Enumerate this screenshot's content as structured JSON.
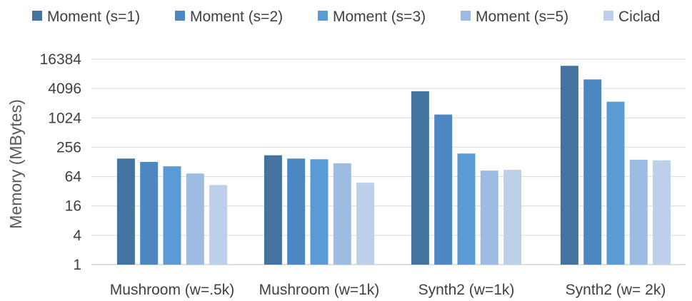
{
  "chart_data": {
    "type": "bar",
    "ylabel": "Memory (MBytes)",
    "yscale": "log2",
    "ylim": [
      1,
      16384
    ],
    "yticks": [
      "1",
      "4",
      "16",
      "64",
      "256",
      "1024",
      "4096",
      "16384"
    ],
    "grid": true,
    "legend_position": "top",
    "categories": [
      "Mushroom (w=.5k)",
      "Mushroom (w=1k)",
      "Synth2 (w=1k)",
      "Synth2 (w= 2k)"
    ],
    "series": [
      {
        "name": "Moment (s=1)",
        "color": "#44739f",
        "values": [
          150,
          175,
          3600,
          12000
        ]
      },
      {
        "name": "Moment (s=2)",
        "color": "#4d87c2",
        "values": [
          128,
          150,
          1200,
          6300
        ]
      },
      {
        "name": "Moment (s=3)",
        "color": "#5b9bd5",
        "values": [
          104,
          145,
          190,
          2200
        ]
      },
      {
        "name": "Moment (s=5)",
        "color": "#9cbce3",
        "values": [
          74,
          120,
          85,
          142
        ]
      },
      {
        "name": "Ciclad",
        "color": "#bdd0ea",
        "values": [
          43,
          48,
          88,
          138
        ]
      }
    ]
  }
}
